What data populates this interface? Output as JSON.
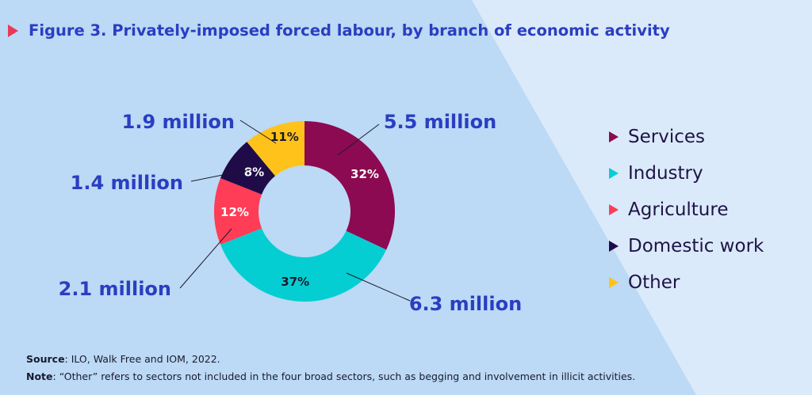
{
  "colors": {
    "background_left": "#bcd9f5",
    "background_right": "#dbeafa",
    "title": "#2a3ec1",
    "callout": "#2a3ec1"
  },
  "title": "Figure 3. Privately-imposed forced labour, by branch of economic activity",
  "chart_data": {
    "type": "pie",
    "donut": true,
    "title": "Figure 3. Privately-imposed forced labour, by branch of economic activity",
    "legend_position": "right",
    "slices": [
      {
        "name": "Services",
        "percent": 32,
        "label": "32%",
        "value_label": "5.5 million",
        "color": "#8c0a51"
      },
      {
        "name": "Industry",
        "percent": 37,
        "label": "37%",
        "value_label": "6.3 million",
        "color": "#05ced3"
      },
      {
        "name": "Agriculture",
        "percent": 12,
        "label": "12%",
        "value_label": "2.1 million",
        "color": "#ff3d56"
      },
      {
        "name": "Domestic work",
        "percent": 8,
        "label": "8%",
        "value_label": "1.4 million",
        "color": "#1f0b47"
      },
      {
        "name": "Other",
        "percent": 11,
        "label": "11%",
        "value_label": "1.9 million",
        "color": "#ffc21a"
      }
    ]
  },
  "footer": {
    "source_label": "Source",
    "source_text": ": ILO, Walk Free and IOM, 2022.",
    "note_label": "Note",
    "note_text": ": “Other” refers to sectors not included in the four broad sectors, such as begging and involvement in illicit activities."
  }
}
